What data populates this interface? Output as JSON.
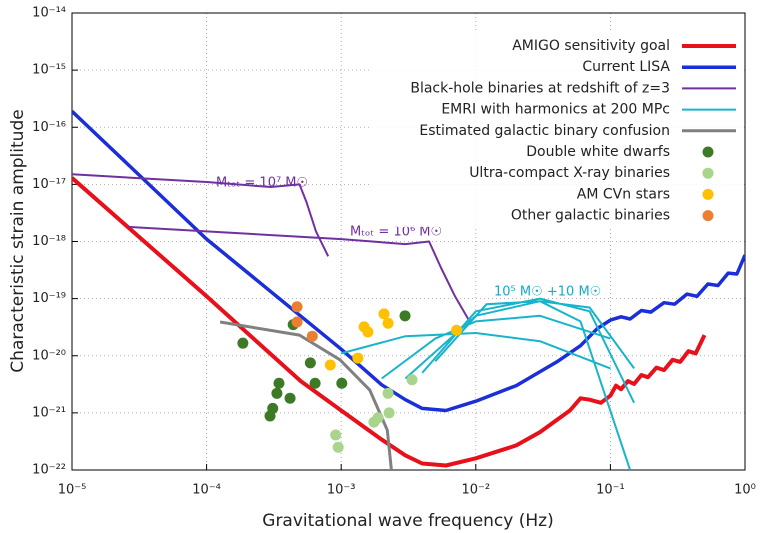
{
  "chart_data": {
    "type": "line",
    "xlabel": "Gravitational wave frequency (Hz)",
    "ylabel": "Characteristic strain amplitude",
    "xscale": "log",
    "yscale": "log",
    "xlim": [
      1e-05,
      1
    ],
    "ylim": [
      1e-22,
      1e-14
    ],
    "xticks": [
      {
        "value": 1e-05,
        "label": "10⁻⁵"
      },
      {
        "value": 0.0001,
        "label": "10⁻⁴"
      },
      {
        "value": 0.001,
        "label": "10⁻³"
      },
      {
        "value": 0.01,
        "label": "10⁻²"
      },
      {
        "value": 0.1,
        "label": "10⁻¹"
      },
      {
        "value": 1,
        "label": "10⁰"
      }
    ],
    "yticks": [
      {
        "value": 1e-22,
        "label": "10⁻²²"
      },
      {
        "value": 1e-21,
        "label": "10⁻²¹"
      },
      {
        "value": 1e-20,
        "label": "10⁻²⁰"
      },
      {
        "value": 1e-19,
        "label": "10⁻¹⁹"
      },
      {
        "value": 1e-18,
        "label": "10⁻¹⁸"
      },
      {
        "value": 1e-17,
        "label": "10⁻¹⁷"
      },
      {
        "value": 1e-16,
        "label": "10⁻¹⁶"
      },
      {
        "value": 1e-15,
        "label": "10⁻¹⁵"
      },
      {
        "value": 1e-14,
        "label": "10⁻¹⁴"
      }
    ],
    "grid": true,
    "legend": "upper right",
    "annotations": [
      "Mₜₒₜ = 10⁷ M☉",
      "Mₜₒₜ = 10⁶ M☉",
      "10⁵ M☉ +10 M☉"
    ],
    "series": [
      {
        "name": "AMIGO sensitivity goal",
        "type": "line",
        "color": "#e8101a",
        "x": [
          1e-05,
          0.0001,
          0.0005,
          0.001,
          0.002,
          0.003,
          0.004,
          0.006,
          0.01,
          0.02,
          0.03,
          0.05,
          0.06,
          0.07,
          0.085,
          0.1,
          0.11,
          0.12,
          0.135,
          0.15,
          0.17,
          0.19,
          0.22,
          0.25,
          0.29,
          0.33,
          0.38,
          0.43,
          0.5
        ],
        "values": [
          1.3e-17,
          1.1e-19,
          3.6e-21,
          1.1e-21,
          3.4e-22,
          1.8e-22,
          1.3e-22,
          1.2e-22,
          1.6e-22,
          2.7e-22,
          4.6e-22,
          1.1e-21,
          1.8e-21,
          1.7e-21,
          1.5e-21,
          2e-21,
          3e-21,
          2.6e-21,
          3.6e-21,
          3.2e-21,
          4.6e-21,
          4.2e-21,
          6.2e-21,
          5.6e-21,
          8.5e-21,
          7.8e-21,
          1.2e-20,
          1.1e-20,
          2.3e-20
        ]
      },
      {
        "name": "Current LISA",
        "type": "line",
        "color": "#1a2fd8",
        "x": [
          1e-05,
          0.0001,
          0.001,
          0.002,
          0.003,
          0.004,
          0.006,
          0.01,
          0.02,
          0.04,
          0.06,
          0.08,
          0.1,
          0.12,
          0.14,
          0.17,
          0.2,
          0.25,
          0.3,
          0.37,
          0.44,
          0.53,
          0.63,
          0.75,
          0.87,
          1
        ],
        "values": [
          1.9e-16,
          1.1e-18,
          1.3e-20,
          3.1e-21,
          1.7e-21,
          1.2e-21,
          1.1e-21,
          1.6e-21,
          3e-21,
          7.8e-21,
          1.5e-20,
          3e-20,
          4.2e-20,
          4.8e-20,
          4.4e-20,
          6.2e-20,
          5.8e-20,
          8.5e-20,
          8e-20,
          1.2e-19,
          1.1e-19,
          1.8e-19,
          1.7e-19,
          2.8e-19,
          2.7e-19,
          5.8e-19
        ]
      },
      {
        "name": "Black-hole binaries at redshift of z=3",
        "type": "line",
        "color": "#7030a0",
        "x": [
          1e-05,
          0.0001,
          0.0003,
          0.00049,
          0.00055,
          0.00065,
          0.0008,
          null,
          2.6e-05,
          0.0001,
          0.001,
          0.003,
          0.0045,
          0.0055,
          0.007,
          0.009
        ],
        "values": [
          1.5e-17,
          1.1e-17,
          9e-18,
          1e-17,
          5e-18,
          1.5e-18,
          5.5e-19,
          null,
          1.8e-18,
          1.5e-18,
          1.1e-18,
          9e-19,
          1e-18,
          3.5e-19,
          1.1e-19,
          4e-20
        ]
      },
      {
        "name": "EMRI with harmonics at 200 MPc",
        "type": "line",
        "color": "#18b4cc",
        "x": [
          0.001,
          0.003,
          0.01,
          0.03,
          0.1,
          null,
          0.002,
          0.005,
          0.01,
          0.03,
          0.1,
          null,
          0.003,
          0.01,
          0.03,
          0.07,
          0.15,
          null,
          0.004,
          0.01,
          0.03,
          0.07,
          0.15,
          null,
          0.005,
          0.012,
          0.03,
          0.06,
          0.14
        ],
        "values": [
          1.1e-20,
          2.2e-20,
          2.5e-20,
          1.8e-20,
          6e-21,
          null,
          4e-21,
          2e-20,
          4e-20,
          5e-20,
          2e-20,
          null,
          4e-21,
          5e-20,
          9e-20,
          7e-20,
          6e-21,
          null,
          5e-21,
          6e-20,
          1e-19,
          6e-20,
          1.5e-21,
          null,
          8e-21,
          8e-20,
          9e-20,
          4e-20,
          1e-22
        ]
      },
      {
        "name": "Estimated galactic binary confusion",
        "type": "line",
        "color": "#808080",
        "x": [
          0.000126,
          0.00049,
          0.00098,
          0.00163,
          0.0022,
          0.00236
        ],
        "values": [
          3.9e-20,
          2.3e-20,
          8.5e-21,
          2.5e-21,
          5e-22,
          1e-22
        ]
      },
      {
        "name": "Double white dwarfs",
        "type": "scatter",
        "color": "#3d7a26",
        "x": [
          0.000186,
          0.00044,
          0.00059,
          0.000345,
          0.000333,
          0.00031,
          0.000296,
          0.000417,
          0.00064,
          0.00101,
          0.00298
        ],
        "values": [
          1.66e-20,
          3.5e-20,
          7.5e-21,
          3.3e-21,
          2.2e-21,
          1.2e-21,
          8.8e-22,
          1.8e-21,
          3.3e-21,
          3.3e-21,
          5e-20
        ]
      },
      {
        "name": "Ultra-compact X-ray binaries",
        "type": "scatter",
        "color": "#a8d48c",
        "x": [
          0.00091,
          0.00095,
          0.00175,
          0.00188,
          0.00223,
          0.00227,
          0.00336
        ],
        "values": [
          4.1e-22,
          2.5e-22,
          6.9e-22,
          8.2e-22,
          2.2e-21,
          1e-21,
          3.8e-21
        ]
      },
      {
        "name": "AM CVn stars",
        "type": "scatter",
        "color": "#ffc000",
        "x": [
          0.00083,
          0.00133,
          0.00148,
          0.00158,
          0.00208,
          0.00223,
          0.0072
        ],
        "values": [
          6.9e-21,
          9.1e-21,
          3.2e-20,
          2.6e-20,
          5.4e-20,
          3.7e-20,
          2.8e-20
        ]
      },
      {
        "name": "Other galactic binaries",
        "type": "scatter",
        "color": "#ed7d31",
        "x": [
          0.00047,
          0.00047,
          0.00061
        ],
        "values": [
          7.2e-20,
          3.9e-20,
          2.2e-20
        ]
      }
    ]
  }
}
